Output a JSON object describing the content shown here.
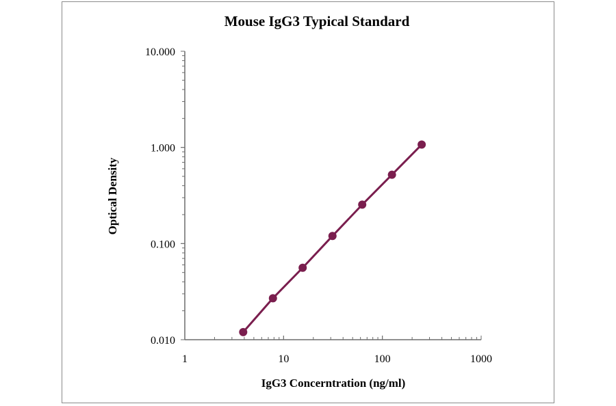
{
  "chart_data": {
    "type": "line",
    "title": "Mouse IgG3 Typical Standard",
    "xlabel": "IgG3 Concerntration (ng/ml)",
    "ylabel": "Optical Density",
    "xscale": "log",
    "yscale": "log",
    "xlim": [
      1,
      1000
    ],
    "ylim": [
      0.01,
      10
    ],
    "xticks": [
      "1",
      "10",
      "100",
      "1000"
    ],
    "yticks": [
      "0.010",
      "0.100",
      "1.000",
      "10.000"
    ],
    "grid": false,
    "legend": "none",
    "series": [
      {
        "color": "#7a1e4e",
        "x": [
          3.9,
          7.8,
          15.6,
          31.25,
          62.5,
          125,
          250
        ],
        "y": [
          0.012,
          0.027,
          0.056,
          0.12,
          0.254,
          0.52,
          1.07
        ]
      }
    ]
  }
}
